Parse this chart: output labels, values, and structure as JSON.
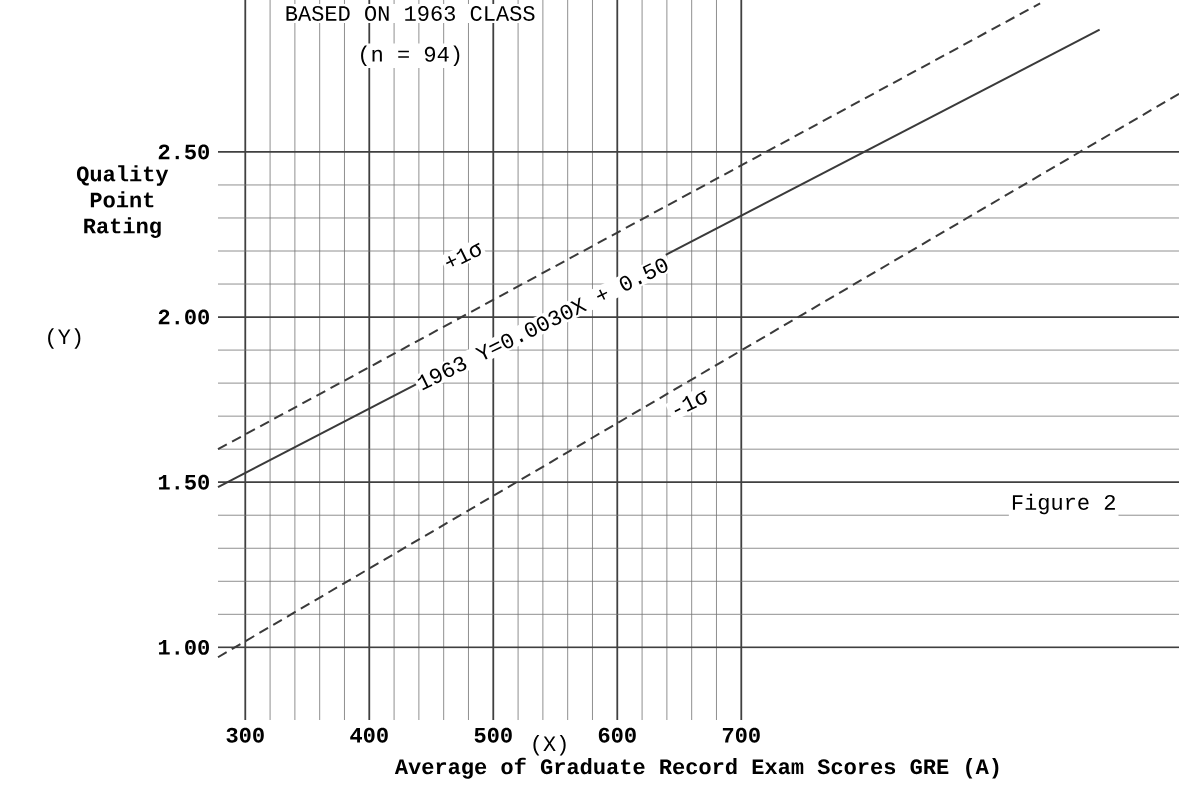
{
  "chart_data": {
    "type": "line",
    "title": "BASED ON 1963 CLASS",
    "subtitle": "(n = 94)",
    "xlabel": "Average of Graduate Record Exam Scores GRE (A)",
    "ylabel": "Quality Point Rating",
    "xlim": [
      278,
      1053
    ],
    "ylim": [
      0.78,
      2.96
    ],
    "xticks": [
      300,
      400,
      500,
      600,
      700
    ],
    "yticks": [
      {
        "value": 1.0,
        "label": "1.00"
      },
      {
        "value": 1.5,
        "label": "1.50"
      },
      {
        "value": 2.0,
        "label": "2.00"
      },
      {
        "value": 2.5,
        "label": "2.50"
      }
    ],
    "grid": true,
    "marker": "none",
    "series": [
      {
        "color": "#3a3a3a",
        "line_style": "solid",
        "x": [
          278,
          989
        ],
        "values": [
          1.485,
          2.87
        ]
      },
      {
        "color": "#3a3a3a",
        "line_style": "dashed",
        "x": [
          278,
          941
        ],
        "values": [
          1.6,
          2.95
        ]
      },
      {
        "color": "#3a3a3a",
        "line_style": "dashed",
        "x": [
          278,
          1053
        ],
        "values": [
          0.97,
          2.676
        ]
      }
    ],
    "annotations": [
      "(Y)",
      "(X)",
      "Figure 2",
      "+1σ",
      {
        "text": "1963  Y=0.0030X + 0.50",
        "x": 540,
        "y": 1.98
      },
      "-1σ"
    ]
  }
}
